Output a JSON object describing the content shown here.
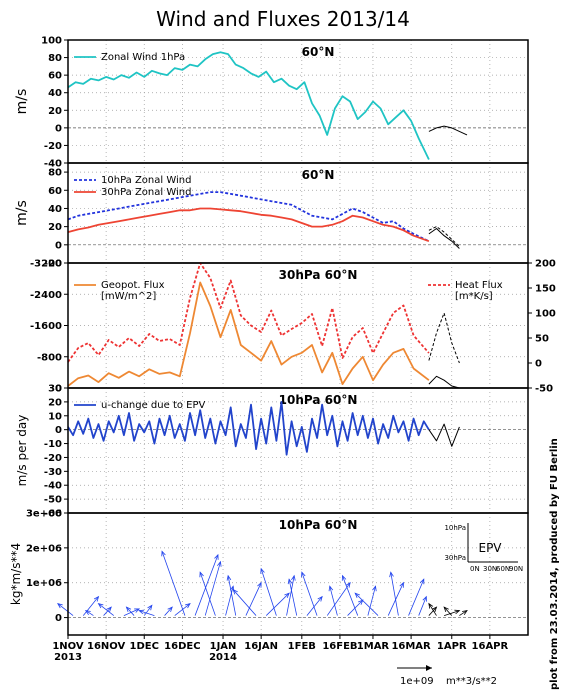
{
  "figure": {
    "title": "Wind and Fluxes 2013/14",
    "side_note": "plot from 23.03.2014, produced by FU Berlin",
    "x_ticks": [
      {
        "day": 0,
        "label": "1NOV"
      },
      {
        "day": 15,
        "label": "16NOV"
      },
      {
        "day": 30,
        "label": "1DEC"
      },
      {
        "day": 45,
        "label": "16DEC"
      },
      {
        "day": 61,
        "label": "1JAN"
      },
      {
        "day": 76,
        "label": "16JAN"
      },
      {
        "day": 92,
        "label": "1FEB"
      },
      {
        "day": 107,
        "label": "16FEB"
      },
      {
        "day": 120,
        "label": "1MAR"
      },
      {
        "day": 135,
        "label": "16MAR"
      },
      {
        "day": 151,
        "label": "1APR"
      },
      {
        "day": 166,
        "label": "16APR"
      }
    ],
    "x_year_labels": [
      {
        "day": 0,
        "label": "2013"
      },
      {
        "day": 61,
        "label": "2014"
      }
    ],
    "x_range_days": [
      0,
      181
    ],
    "analysis_end_day": 142,
    "vector_scale_label": "1e+09",
    "vector_scale_units": "m**3/s**2"
  },
  "chart_data": [
    {
      "type": "line",
      "title": "60°N",
      "ylabel": "m/s",
      "ylim": [
        -40,
        100
      ],
      "yticks": [
        -40,
        -20,
        0,
        20,
        40,
        60,
        80,
        100
      ],
      "grid": true,
      "legend_position": "top-left",
      "series": [
        {
          "name": "Zonal Wind 1hPa",
          "color": "#1fc4c4",
          "x": [
            0,
            3,
            6,
            9,
            12,
            15,
            18,
            21,
            24,
            27,
            30,
            33,
            36,
            39,
            42,
            45,
            48,
            51,
            54,
            57,
            60,
            63,
            66,
            69,
            72,
            75,
            78,
            81,
            84,
            87,
            90,
            93,
            96,
            99,
            102,
            105,
            108,
            111,
            114,
            117,
            120,
            123,
            126,
            129,
            132,
            135,
            138,
            142
          ],
          "y": [
            46,
            52,
            50,
            56,
            54,
            58,
            55,
            60,
            57,
            63,
            58,
            65,
            62,
            60,
            68,
            66,
            72,
            70,
            78,
            84,
            86,
            84,
            72,
            68,
            62,
            58,
            64,
            52,
            56,
            48,
            44,
            52,
            28,
            14,
            -8,
            22,
            36,
            30,
            10,
            18,
            30,
            22,
            4,
            12,
            20,
            8,
            -12,
            -36
          ]
        },
        {
          "name": "forecast",
          "color": "#000000",
          "x": [
            142,
            145,
            148,
            151,
            154,
            157
          ],
          "y": [
            -4,
            0,
            2,
            0,
            -4,
            -8
          ]
        }
      ]
    },
    {
      "type": "line",
      "title": "60°N",
      "ylabel": "m/s",
      "ylim": [
        -20,
        90
      ],
      "yticks": [
        -20,
        0,
        20,
        40,
        60,
        80
      ],
      "grid": true,
      "legend_position": "top-left",
      "series": [
        {
          "name": "10hPa Zonal Wind",
          "color": "#2233dd",
          "dash": "3 2",
          "x": [
            0,
            4,
            8,
            12,
            16,
            20,
            24,
            28,
            32,
            36,
            40,
            44,
            48,
            52,
            56,
            60,
            64,
            68,
            72,
            76,
            80,
            84,
            88,
            92,
            96,
            100,
            104,
            108,
            112,
            116,
            120,
            124,
            128,
            132,
            136,
            142
          ],
          "y": [
            28,
            32,
            34,
            36,
            38,
            40,
            42,
            44,
            46,
            48,
            50,
            52,
            54,
            56,
            58,
            58,
            56,
            54,
            52,
            50,
            48,
            46,
            44,
            38,
            32,
            30,
            28,
            34,
            40,
            36,
            30,
            24,
            26,
            18,
            12,
            4
          ]
        },
        {
          "name": "30hPa Zonal Wind",
          "color": "#ee4433",
          "x": [
            0,
            4,
            8,
            12,
            16,
            20,
            24,
            28,
            32,
            36,
            40,
            44,
            48,
            52,
            56,
            60,
            64,
            68,
            72,
            76,
            80,
            84,
            88,
            92,
            96,
            100,
            104,
            108,
            112,
            116,
            120,
            124,
            128,
            132,
            136,
            142
          ],
          "y": [
            14,
            17,
            19,
            22,
            24,
            26,
            28,
            30,
            32,
            34,
            36,
            38,
            38,
            40,
            40,
            39,
            38,
            37,
            35,
            33,
            32,
            30,
            28,
            24,
            20,
            20,
            22,
            26,
            32,
            30,
            26,
            22,
            20,
            16,
            10,
            4
          ]
        },
        {
          "name": "forecast",
          "color": "#000000",
          "x": [
            142,
            145,
            148,
            151,
            154
          ],
          "y": [
            12,
            18,
            10,
            4,
            -4
          ]
        },
        {
          "name": "forecast-dashed",
          "color": "#000000",
          "dash": "3 2",
          "x": [
            142,
            145,
            148,
            151,
            154
          ],
          "y": [
            16,
            20,
            14,
            6,
            -2
          ]
        }
      ]
    },
    {
      "type": "line",
      "title": "30hPa 60°N",
      "ylim": [
        0,
        -3200
      ],
      "yticks_left": [
        0,
        -800,
        -1600,
        -2400,
        -3200
      ],
      "yticks_left_labels": [
        "0",
        "-800",
        "-1600",
        "-2400",
        "-3200"
      ],
      "yticks_right": [
        -50,
        0,
        50,
        100,
        150,
        200
      ],
      "y2lim": [
        -50,
        200
      ],
      "grid": true,
      "legend_left": [
        "Geopot. Flux",
        "[mW/m^2]"
      ],
      "legend_right": [
        "Heat Flux",
        "[m*K/s]"
      ],
      "series": [
        {
          "name": "Geopot. Flux",
          "color": "#ee8833",
          "axis": "left",
          "x": [
            0,
            4,
            8,
            12,
            16,
            20,
            24,
            28,
            32,
            36,
            40,
            44,
            48,
            52,
            56,
            60,
            64,
            68,
            72,
            76,
            80,
            84,
            88,
            92,
            96,
            100,
            104,
            108,
            112,
            116,
            120,
            124,
            128,
            132,
            136,
            142
          ],
          "y": [
            -50,
            -250,
            -320,
            -150,
            -380,
            -260,
            -420,
            -300,
            -480,
            -360,
            -400,
            -300,
            -1400,
            -2700,
            -2100,
            -1300,
            -2000,
            -1100,
            -900,
            -700,
            -1200,
            -600,
            -800,
            -900,
            -1100,
            -400,
            -900,
            -100,
            -500,
            -800,
            -200,
            -600,
            -900,
            -1000,
            -500,
            -200
          ]
        },
        {
          "name": "Heat Flux",
          "color": "#ee3333",
          "dash": "3 2",
          "axis": "right",
          "x": [
            0,
            4,
            8,
            12,
            16,
            20,
            24,
            28,
            32,
            36,
            40,
            44,
            48,
            52,
            56,
            60,
            64,
            68,
            72,
            76,
            80,
            84,
            88,
            92,
            96,
            100,
            104,
            108,
            112,
            116,
            120,
            124,
            128,
            132,
            136,
            142
          ],
          "y": [
            2,
            30,
            40,
            16,
            46,
            32,
            50,
            34,
            58,
            44,
            48,
            36,
            130,
            200,
            170,
            110,
            165,
            95,
            75,
            62,
            105,
            55,
            68,
            80,
            98,
            34,
            110,
            10,
            52,
            70,
            20,
            60,
            100,
            115,
            55,
            20
          ]
        },
        {
          "name": "forecast-heat",
          "color": "#000000",
          "dash": "3 2",
          "axis": "right",
          "x": [
            142,
            145,
            148,
            151,
            154
          ],
          "y": [
            5,
            60,
            100,
            40,
            0
          ]
        },
        {
          "name": "forecast-geop",
          "color": "#000000",
          "axis": "left",
          "x": [
            142,
            145,
            148,
            151,
            154
          ],
          "y": [
            -100,
            -300,
            -200,
            -50,
            0
          ]
        }
      ]
    },
    {
      "type": "line",
      "title": "10hPa 60°N",
      "ylabel": "m/s per day",
      "ylim": [
        -60,
        30
      ],
      "yticks": [
        -60,
        -50,
        -40,
        -30,
        -20,
        -10,
        0,
        10,
        20,
        30
      ],
      "grid": true,
      "legend_position": "top-left",
      "series": [
        {
          "name": "u-change due to EPV",
          "color": "#2244cc",
          "x": [
            0,
            2,
            4,
            6,
            8,
            10,
            12,
            14,
            16,
            18,
            20,
            22,
            24,
            26,
            28,
            30,
            32,
            34,
            36,
            38,
            40,
            42,
            44,
            46,
            48,
            50,
            52,
            54,
            56,
            58,
            60,
            62,
            64,
            66,
            68,
            70,
            72,
            74,
            76,
            78,
            80,
            82,
            84,
            86,
            88,
            90,
            92,
            94,
            96,
            98,
            100,
            102,
            104,
            106,
            108,
            110,
            112,
            114,
            116,
            118,
            120,
            122,
            124,
            126,
            128,
            130,
            132,
            134,
            136,
            138,
            140,
            142
          ],
          "y": [
            2,
            -4,
            6,
            -3,
            8,
            -6,
            4,
            -8,
            6,
            -2,
            10,
            -4,
            12,
            -8,
            4,
            -2,
            6,
            -10,
            8,
            -4,
            10,
            -6,
            4,
            -8,
            12,
            -4,
            14,
            -6,
            8,
            -10,
            6,
            -4,
            16,
            -12,
            4,
            -6,
            18,
            -14,
            8,
            -10,
            16,
            -8,
            20,
            -18,
            6,
            -12,
            2,
            -16,
            8,
            -6,
            18,
            -4,
            10,
            -12,
            6,
            -8,
            12,
            -4,
            10,
            -6,
            8,
            -10,
            4,
            -6,
            10,
            -2,
            6,
            -8,
            8,
            -4,
            6,
            0
          ]
        },
        {
          "name": "forecast",
          "color": "#000000",
          "x": [
            142,
            145,
            148,
            151,
            154
          ],
          "y": [
            0,
            -8,
            4,
            -12,
            2
          ]
        }
      ]
    },
    {
      "type": "scatter",
      "title": "10hPa 60°N",
      "ylabel": "kg*m/s**4",
      "ylim": [
        -500000,
        3000000
      ],
      "yticks": [
        0,
        1000000,
        2000000,
        3000000
      ],
      "ytick_labels": [
        "0",
        "1e+06",
        "2e+06",
        "3e+06"
      ],
      "legend": "EPV",
      "inset_labels": [
        "10hPa",
        "30hPa",
        "0N",
        "30N",
        "60N",
        "90N"
      ],
      "vectors": {
        "color": "#2244ee",
        "x": [
          2,
          6,
          10,
          14,
          18,
          22,
          26,
          30,
          34,
          38,
          42,
          46,
          50,
          54,
          58,
          62,
          66,
          70,
          74,
          78,
          82,
          86,
          90,
          94,
          98,
          102,
          106,
          110,
          114,
          118,
          122,
          126,
          130,
          134,
          138
        ],
        "y": [
          400000,
          600000,
          200000,
          300000,
          400000,
          250000,
          300000,
          350000,
          200000,
          300000,
          400000,
          1900000,
          1800000,
          1600000,
          1300000,
          900000,
          1200000,
          1000000,
          800000,
          700000,
          1400000,
          1200000,
          1100000,
          600000,
          1300000,
          1000000,
          900000,
          500000,
          1200000,
          900000,
          700000,
          1000000,
          1300000,
          1100000,
          600000
        ],
        "u": [
          -2,
          2,
          -1,
          1,
          -2,
          2,
          -1,
          1,
          -2,
          1,
          2,
          -3,
          3,
          2,
          -2,
          1,
          -1,
          2,
          -3,
          3,
          -2,
          1,
          -1,
          2,
          -2,
          3,
          -1,
          2,
          -2,
          1,
          -3,
          2,
          -1,
          2,
          1
        ]
      },
      "forecast_vectors": {
        "color": "#000000",
        "x": [
          142,
          145,
          148,
          151,
          154
        ],
        "y": [
          300000,
          400000,
          200000,
          300000,
          200000
        ],
        "u": [
          1,
          -1,
          2,
          -1,
          1
        ]
      }
    }
  ]
}
